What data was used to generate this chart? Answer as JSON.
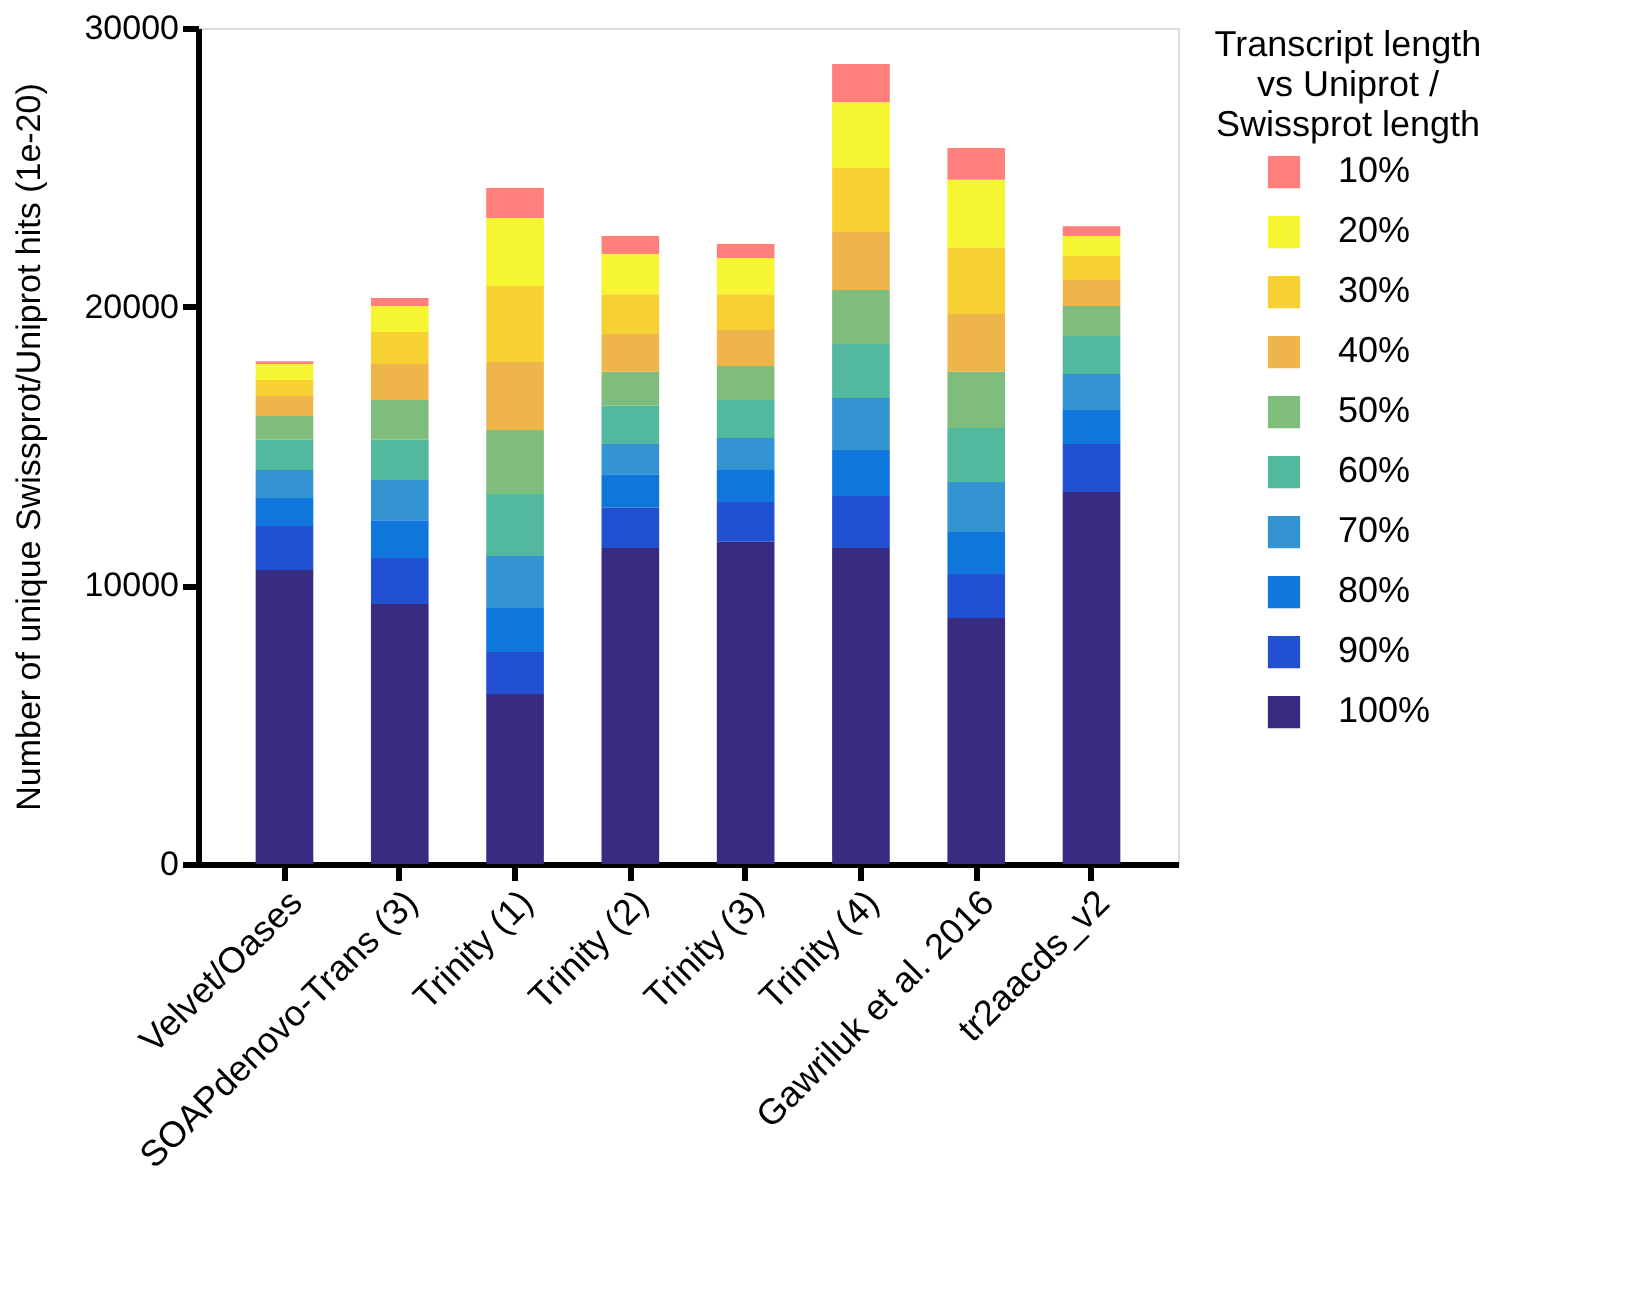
{
  "chart_data": {
    "type": "bar",
    "stacked": true,
    "ylabel": "Number of unique Swissprot/Uniprot hits (1e-20)",
    "legend_title": "Transcript length\nvs Uniprot /\nSwissprot length",
    "legend": "top right",
    "grid": false,
    "categories": [
      "Velvet/Oases",
      "SOAPdenovo-Trans (3)",
      "Trinity (1)",
      "Trinity (2)",
      "Trinity (3)",
      "Trinity (4)",
      "Gawriluk et al. 2016",
      "tr2aacds_v2"
    ],
    "ylim": [
      0,
      30000
    ],
    "yticks": [
      0,
      10000,
      20000,
      30000
    ],
    "series": [
      {
        "name": "100%",
        "color": "#372b82",
        "values": [
          10550,
          9330,
          6100,
          11340,
          11560,
          11340,
          8830,
          13350
        ]
      },
      {
        "name": "90%",
        "color": "#2150d0",
        "values": [
          1580,
          1650,
          1510,
          1440,
          1430,
          1870,
          1580,
          1720
        ]
      },
      {
        "name": "80%",
        "color": "#0f76db",
        "values": [
          1000,
          1360,
          1580,
          1210,
          1150,
          1650,
          1500,
          1220
        ]
      },
      {
        "name": "70%",
        "color": "#3493d1",
        "values": [
          1010,
          1440,
          1860,
          1080,
          1150,
          1860,
          1800,
          1290
        ]
      },
      {
        "name": "60%",
        "color": "#52b89e",
        "values": [
          1080,
          1440,
          2230,
          1370,
          1360,
          1940,
          1940,
          1370
        ]
      },
      {
        "name": "50%",
        "color": "#7fbd7c",
        "values": [
          860,
          1430,
          2290,
          1220,
          1220,
          1940,
          2010,
          1070
        ]
      },
      {
        "name": "40%",
        "color": "#eeb54a",
        "values": [
          710,
          1290,
          2440,
          1360,
          1290,
          2080,
          2080,
          940
        ]
      },
      {
        "name": "30%",
        "color": "#f7d134",
        "values": [
          580,
          1150,
          2730,
          1430,
          1290,
          2300,
          2370,
          860
        ]
      },
      {
        "name": "20%",
        "color": "#f5f532",
        "values": [
          570,
          930,
          2440,
          1440,
          1300,
          2360,
          2440,
          720
        ]
      },
      {
        "name": "10%",
        "color": "#fe7f7b",
        "values": [
          100,
          290,
          1080,
          650,
          500,
          1370,
          1140,
          350
        ]
      }
    ]
  }
}
